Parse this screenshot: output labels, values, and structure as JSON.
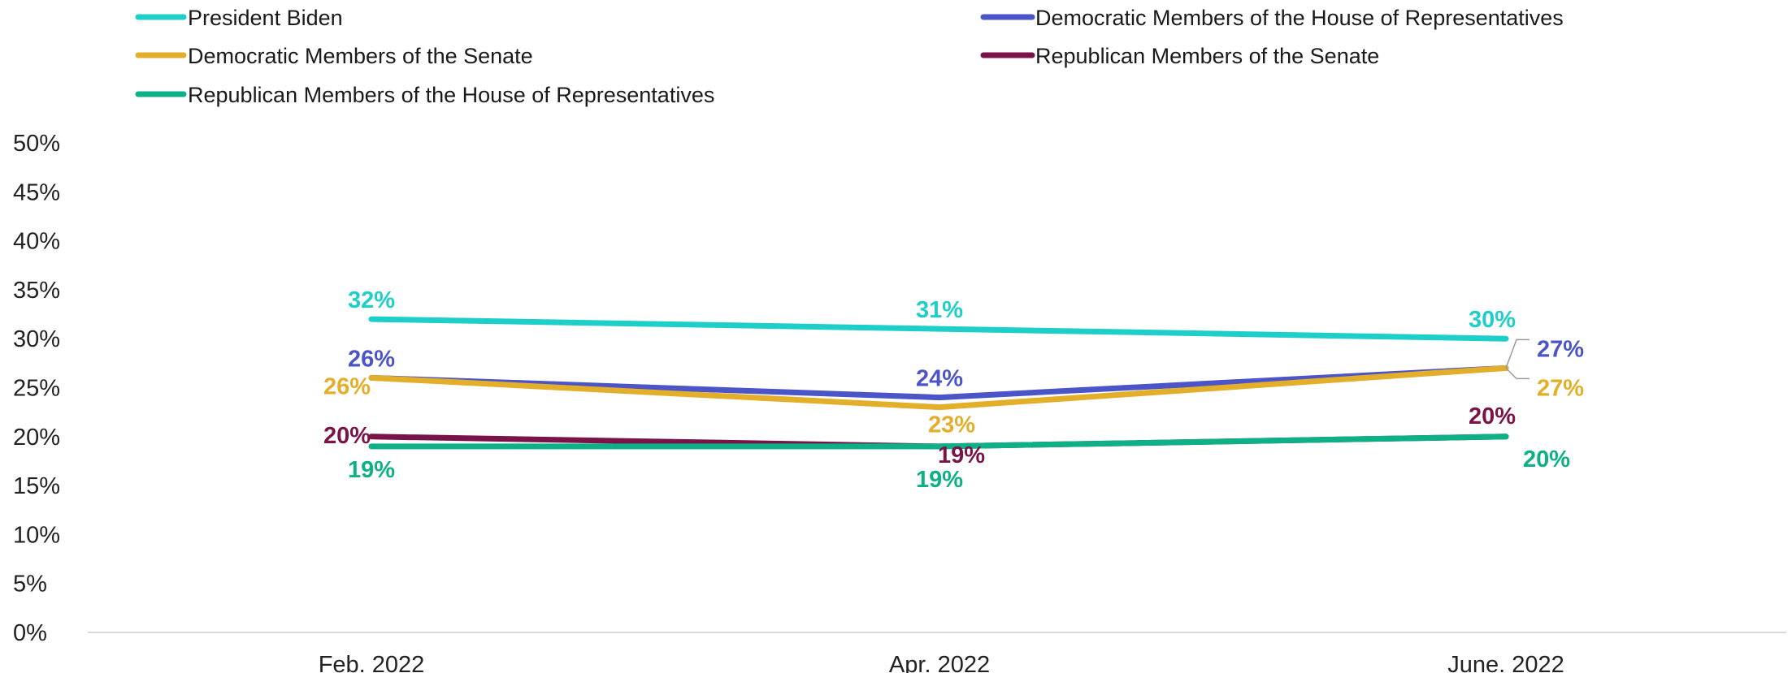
{
  "chart_data": {
    "type": "line",
    "title": "",
    "xlabel": "",
    "ylabel": "",
    "categories": [
      "Feb. 2022",
      "Apr. 2022",
      "June. 2022"
    ],
    "ylim": [
      0,
      50
    ],
    "yticks": [
      "0%",
      "5%",
      "10%",
      "15%",
      "20%",
      "25%",
      "30%",
      "35%",
      "40%",
      "45%",
      "50%"
    ],
    "grid": false,
    "legend_position": "top",
    "series": [
      {
        "name": "President Biden",
        "color": "#1ECFC9",
        "values": [
          32,
          31,
          30
        ],
        "labels": [
          "32%",
          "31%",
          "30%"
        ]
      },
      {
        "name": "Democratic Members of the House of Representatives",
        "color": "#4B55C8",
        "values": [
          26,
          24,
          27
        ],
        "labels": [
          "26%",
          "24%",
          "27%"
        ]
      },
      {
        "name": "Democratic Members of the Senate",
        "color": "#E3AE29",
        "values": [
          26,
          23,
          27
        ],
        "labels": [
          "26%",
          "23%",
          "27%"
        ]
      },
      {
        "name": "Republican Members of the Senate",
        "color": "#7A1448",
        "values": [
          20,
          19,
          20
        ],
        "labels": [
          "20%",
          "19%",
          "20%"
        ]
      },
      {
        "name": "Republican Members of the House of Representatives",
        "color": "#0DB087",
        "values": [
          19,
          19,
          20
        ],
        "labels": [
          "19%",
          "19%",
          "20%"
        ]
      }
    ]
  }
}
